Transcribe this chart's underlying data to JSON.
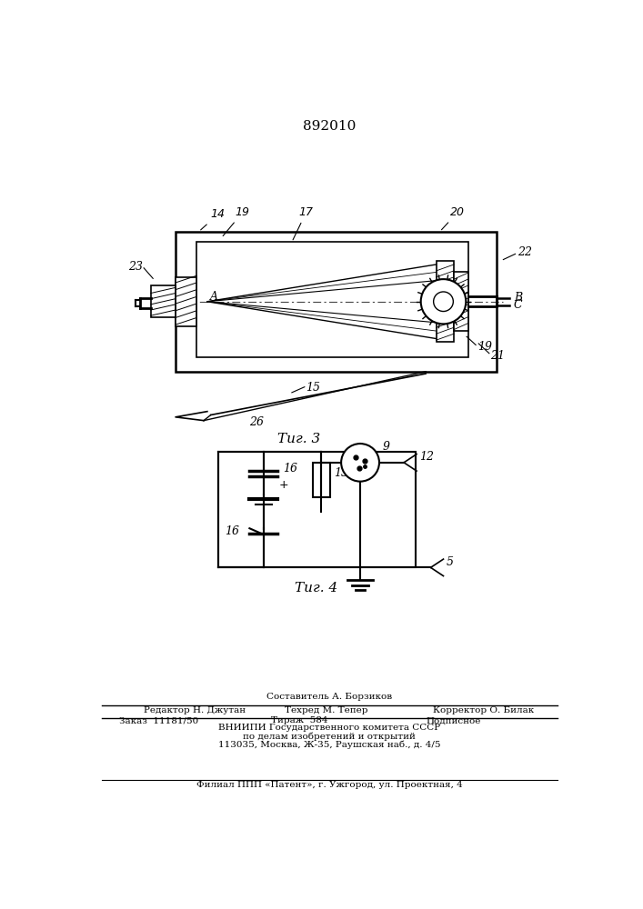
{
  "title": "892010",
  "fig3_label": "Τиг. 3",
  "fig4_label": "Τиг. 4",
  "bg_color": "#ffffff",
  "line_color": "#000000"
}
